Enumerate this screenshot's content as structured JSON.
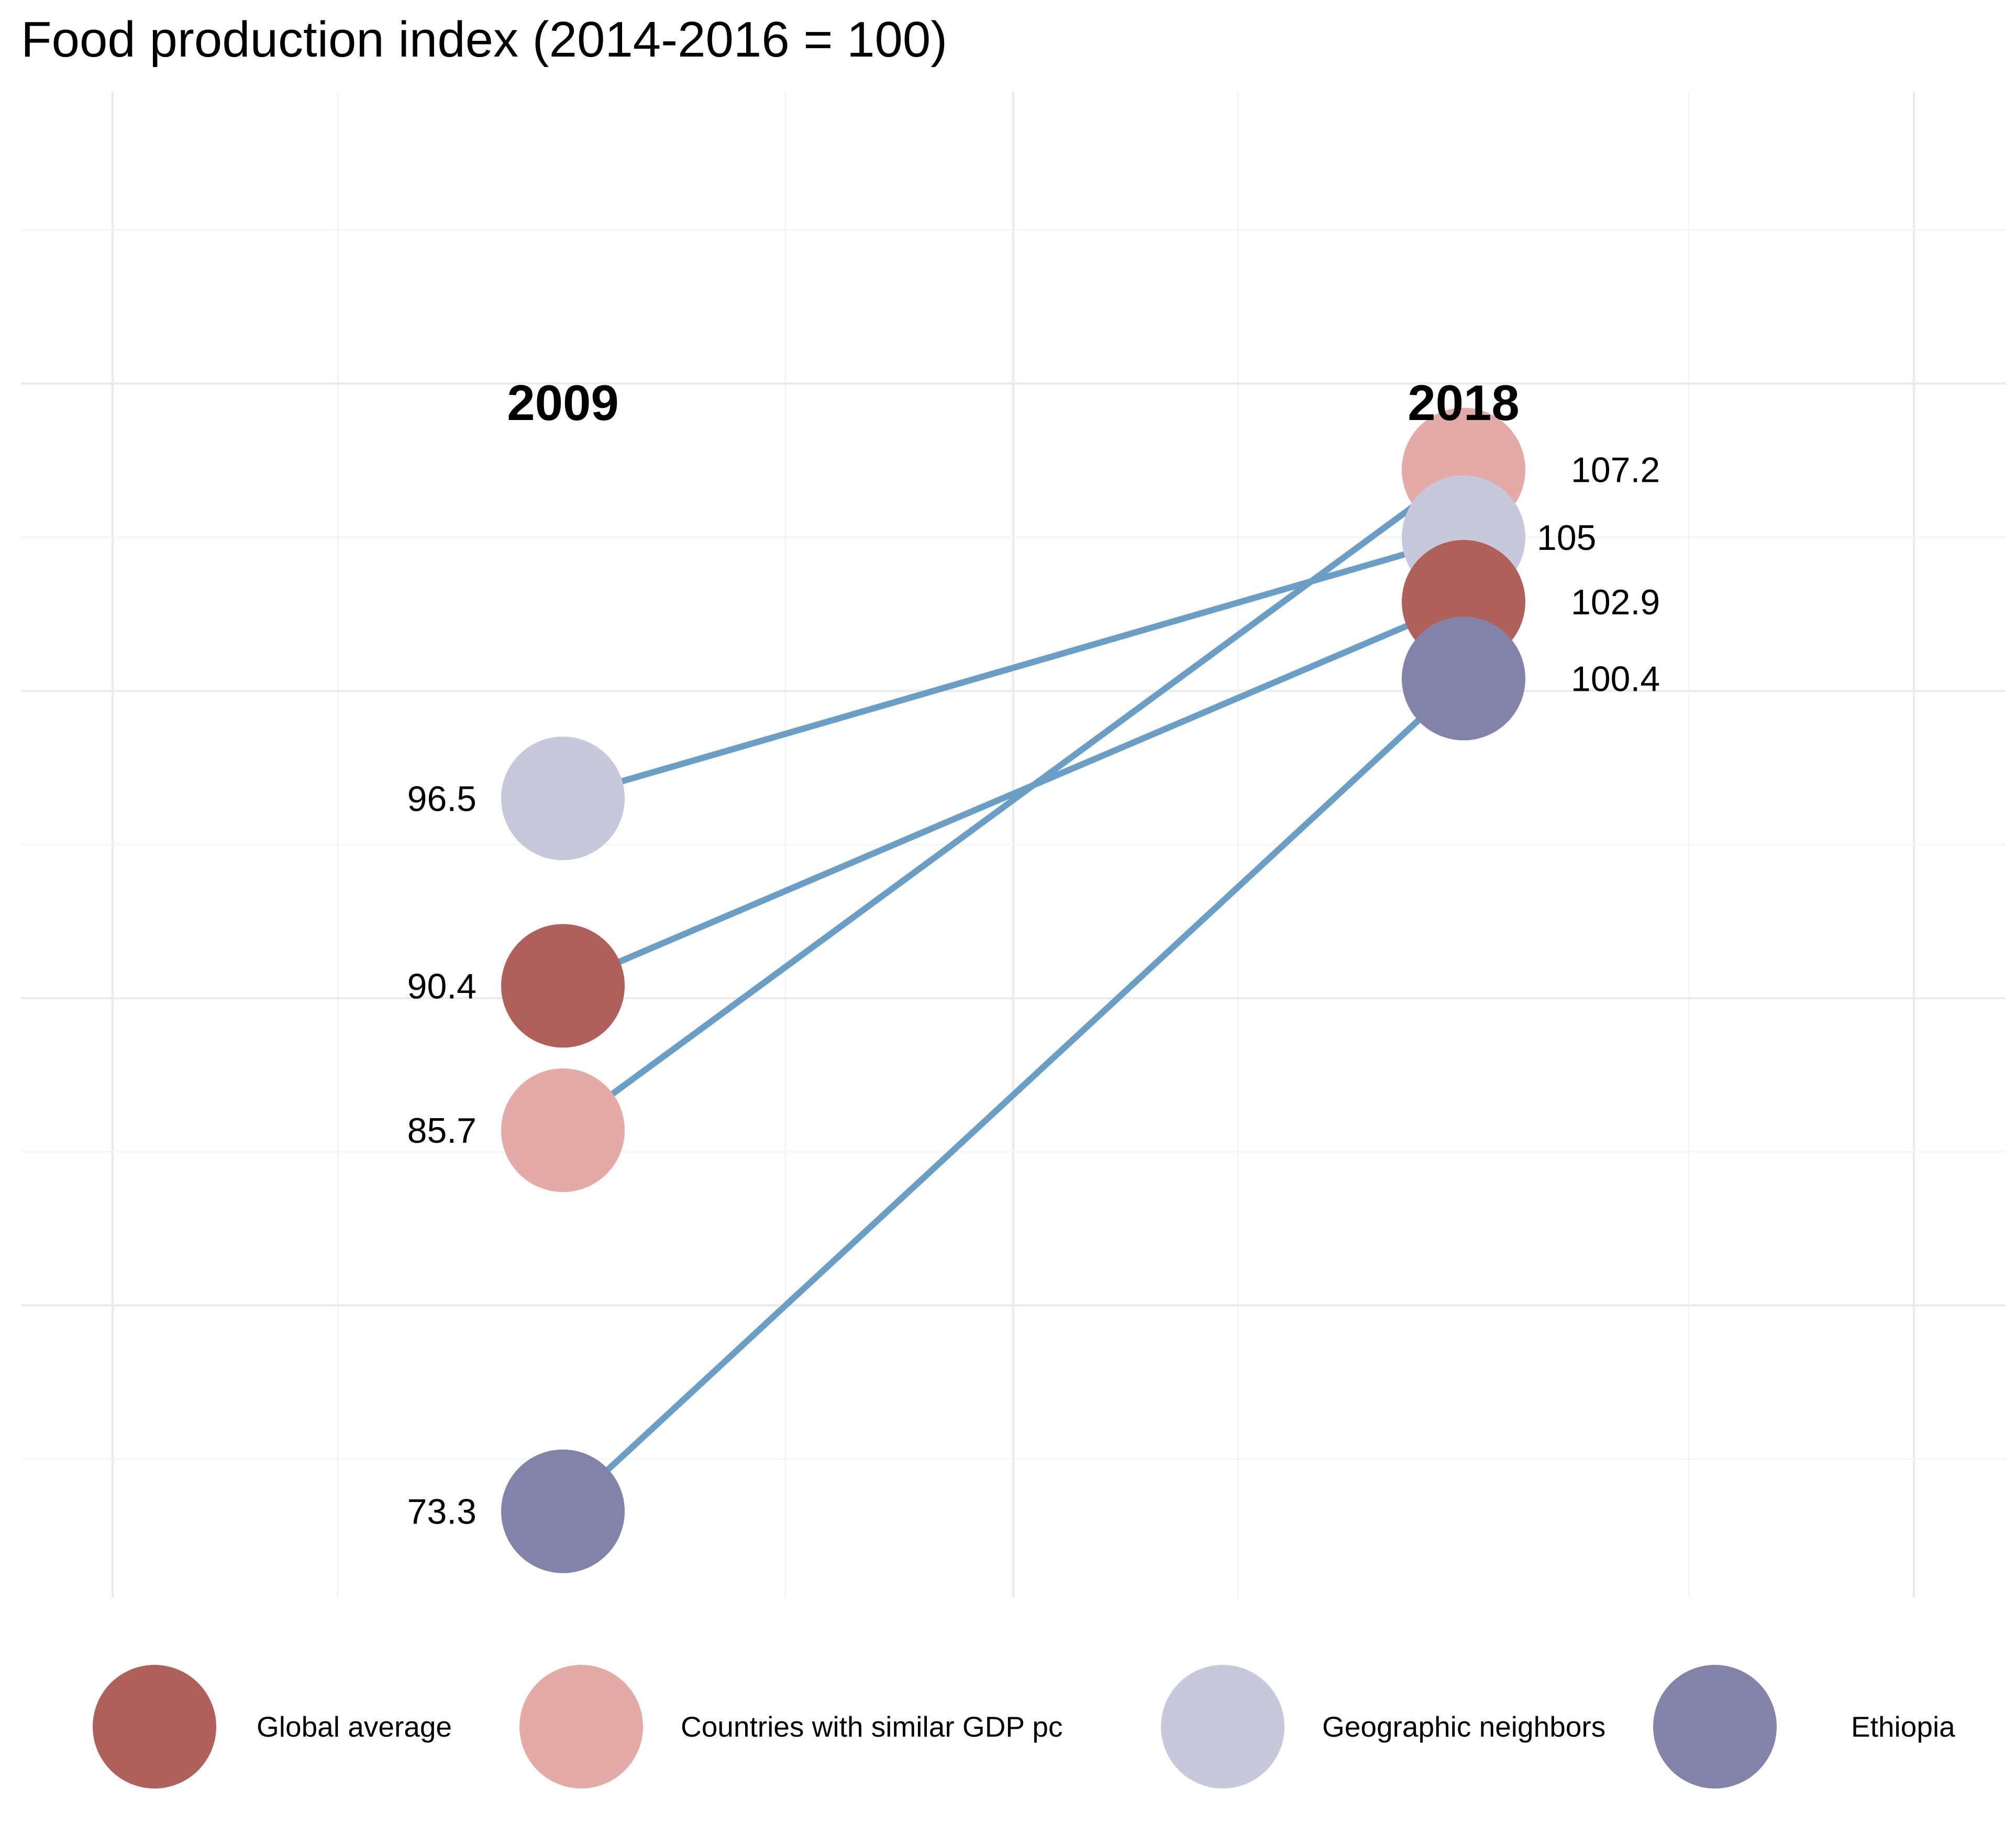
{
  "chart_data": {
    "type": "slope",
    "title": "Food production index (2014-2016 = 100)",
    "xlabel": "",
    "ylabel": "",
    "categories": [
      "2009",
      "2018"
    ],
    "ylim": [
      70.5,
      119.5
    ],
    "grid": true,
    "legend_position": "bottom",
    "series": [
      {
        "name": "Global average",
        "color": "#b0605a",
        "values": [
          90.4,
          102.9
        ],
        "labels": [
          "90.4",
          "102.9"
        ]
      },
      {
        "name": "Countries with similar GDP pc",
        "color": "#e3aaa7",
        "values": [
          85.7,
          107.2
        ],
        "labels": [
          "85.7",
          "107.2"
        ]
      },
      {
        "name": "Geographic neighbors",
        "color": "#c8c8dc",
        "values": [
          96.5,
          105
        ],
        "labels": [
          "96.5",
          "105"
        ]
      },
      {
        "name": "Ethiopia",
        "color": "#8383aa",
        "values": [
          73.3,
          100.4
        ],
        "labels": [
          "73.3",
          "100.4"
        ]
      }
    ],
    "line_color": "#6a9ec5"
  }
}
